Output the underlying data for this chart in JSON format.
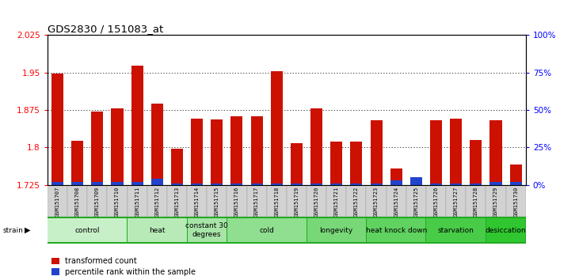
{
  "title": "GDS2830 / 151083_at",
  "samples": [
    "GSM151707",
    "GSM151708",
    "GSM151709",
    "GSM151710",
    "GSM151711",
    "GSM151712",
    "GSM151713",
    "GSM151714",
    "GSM151715",
    "GSM151716",
    "GSM151717",
    "GSM151718",
    "GSM151719",
    "GSM151720",
    "GSM151721",
    "GSM151722",
    "GSM151723",
    "GSM151724",
    "GSM151725",
    "GSM151726",
    "GSM151727",
    "GSM151728",
    "GSM151729",
    "GSM151730"
  ],
  "red_values": [
    1.948,
    1.813,
    1.872,
    1.878,
    1.963,
    1.888,
    1.797,
    1.858,
    1.856,
    1.862,
    1.862,
    1.953,
    1.808,
    1.878,
    1.812,
    1.812,
    1.855,
    1.758,
    1.735,
    1.855,
    1.858,
    1.814,
    1.855,
    1.765
  ],
  "blue_percentiles": [
    2,
    2,
    2,
    2,
    2,
    4,
    1,
    1,
    1,
    1,
    1,
    1,
    1,
    1,
    1,
    1,
    1,
    3,
    5,
    1,
    1,
    1,
    2,
    2
  ],
  "groups": [
    {
      "label": "control",
      "start": 0,
      "end": 4,
      "color": "#c8f0c8"
    },
    {
      "label": "heat",
      "start": 4,
      "end": 7,
      "color": "#b8eab8"
    },
    {
      "label": "constant 30\ndegrees",
      "start": 7,
      "end": 9,
      "color": "#a8e4a8"
    },
    {
      "label": "cold",
      "start": 9,
      "end": 13,
      "color": "#90de90"
    },
    {
      "label": "longevity",
      "start": 13,
      "end": 16,
      "color": "#78d878"
    },
    {
      "label": "heat knock down",
      "start": 16,
      "end": 19,
      "color": "#60d260"
    },
    {
      "label": "starvation",
      "start": 19,
      "end": 22,
      "color": "#48cc48"
    },
    {
      "label": "desiccation",
      "start": 22,
      "end": 24,
      "color": "#30c630"
    }
  ],
  "ylim_left": [
    1.725,
    2.025
  ],
  "yticks_left": [
    1.725,
    1.8,
    1.875,
    1.95,
    2.025
  ],
  "yticks_right": [
    0,
    25,
    50,
    75,
    100
  ],
  "bar_color": "#cc1100",
  "blue_color": "#2244cc",
  "title_fontsize": 9.5,
  "tick_fontsize": 7.5,
  "sample_fontsize": 5.0,
  "group_fontsize": 6.5,
  "legend_fontsize": 7.0
}
